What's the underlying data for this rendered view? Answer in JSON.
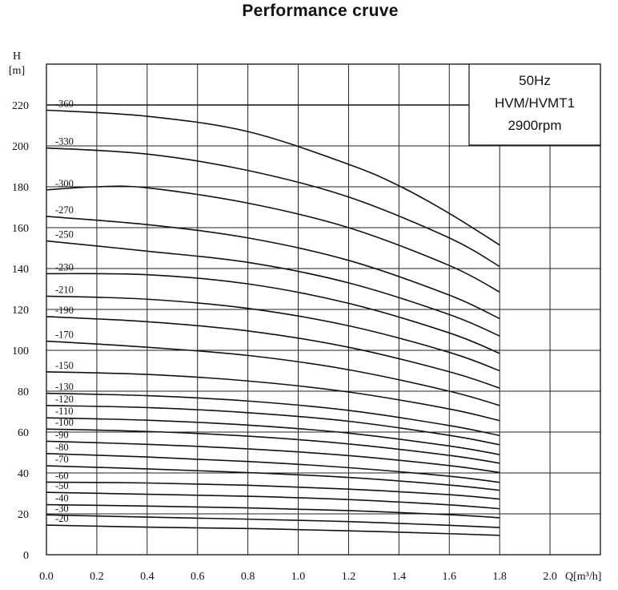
{
  "chart_data": {
    "type": "line",
    "title": "Performance cruve",
    "xlabel": "Q[m³/h]",
    "ylabel": "H",
    "ylabel_unit": "[m]",
    "xlim": [
      0,
      2.2
    ],
    "ylim": [
      0,
      240
    ],
    "x_ticks": [
      "0.0",
      "0.2",
      "0.4",
      "0.6",
      "0.8",
      "1.0",
      "1.2",
      "1.4",
      "1.6",
      "1.8",
      "2.0"
    ],
    "y_ticks": [
      "0",
      "20",
      "40",
      "60",
      "80",
      "100",
      "120",
      "140",
      "160",
      "180",
      "200",
      "220"
    ],
    "grid": true,
    "info_box": [
      "50Hz",
      "HVM/HVMT1",
      "2900rpm"
    ],
    "series": [
      {
        "name": "-20",
        "x": [
          0,
          0.4,
          0.8,
          1.2,
          1.6,
          1.8
        ],
        "y": [
          14.5,
          13.5,
          12.8,
          11.7,
          10.3,
          9.5
        ]
      },
      {
        "name": "-30",
        "x": [
          0,
          0.4,
          0.8,
          1.2,
          1.6,
          1.8
        ],
        "y": [
          19.5,
          18.4,
          17.4,
          16.2,
          14.4,
          13.3
        ]
      },
      {
        "name": "-40",
        "x": [
          0,
          0.4,
          0.8,
          1.2,
          1.6,
          1.8
        ],
        "y": [
          24.5,
          23.8,
          22.9,
          21.6,
          19.6,
          18.1
        ]
      },
      {
        "name": "-50",
        "x": [
          0,
          0.4,
          0.8,
          1.2,
          1.6,
          1.8
        ],
        "y": [
          30.5,
          29.6,
          28.6,
          27.0,
          24.4,
          22.5
        ]
      },
      {
        "name": "-60",
        "x": [
          0,
          0.4,
          0.8,
          1.2,
          1.6,
          1.8
        ],
        "y": [
          35.5,
          35.1,
          34.0,
          32.1,
          29.4,
          27.2
        ]
      },
      {
        "name": "-70",
        "x": [
          0,
          0.4,
          0.8,
          1.2,
          1.6,
          1.8
        ],
        "y": [
          43.5,
          42.0,
          40.2,
          37.8,
          34.1,
          31.5
        ]
      },
      {
        "name": "-80",
        "x": [
          0,
          0.4,
          0.8,
          1.2,
          1.6,
          1.8
        ],
        "y": [
          49.5,
          47.8,
          45.6,
          42.6,
          38.4,
          35.4
        ]
      },
      {
        "name": "-90",
        "x": [
          0,
          0.4,
          0.8,
          1.2,
          1.6,
          1.8
        ],
        "y": [
          55.5,
          54.0,
          51.8,
          48.5,
          43.6,
          40.2
        ]
      },
      {
        "name": "-100",
        "x": [
          0,
          0.4,
          0.8,
          1.2,
          1.6,
          1.8
        ],
        "y": [
          61.5,
          60.3,
          58.0,
          54.2,
          48.6,
          44.8
        ]
      },
      {
        "name": "-110",
        "x": [
          0,
          0.4,
          0.8,
          1.2,
          1.6,
          1.8
        ],
        "y": [
          67.0,
          65.8,
          63.4,
          59.5,
          53.2,
          49.0
        ]
      },
      {
        "name": "-120",
        "x": [
          0,
          0.4,
          0.8,
          1.2,
          1.6,
          1.8
        ],
        "y": [
          73.0,
          72.0,
          69.5,
          65.3,
          58.4,
          53.8
        ]
      },
      {
        "name": "-130",
        "x": [
          0,
          0.4,
          0.8,
          1.2,
          1.6,
          1.8
        ],
        "y": [
          79.0,
          77.8,
          75.2,
          70.6,
          63.2,
          58.3
        ]
      },
      {
        "name": "-150",
        "x": [
          0,
          0.4,
          0.8,
          1.2,
          1.6,
          1.8
        ],
        "y": [
          89.5,
          88.2,
          85.0,
          79.6,
          71.3,
          65.6
        ]
      },
      {
        "name": "-170",
        "x": [
          0,
          0.4,
          0.8,
          1.2,
          1.6,
          1.8
        ],
        "y": [
          104.5,
          101.5,
          97.5,
          90.5,
          80.0,
          73.0
        ]
      },
      {
        "name": "-190",
        "x": [
          0,
          0.4,
          0.8,
          1.2,
          1.6,
          1.8
        ],
        "y": [
          116.5,
          114.0,
          109.5,
          101.5,
          89.5,
          81.5
        ]
      },
      {
        "name": "-210",
        "x": [
          0,
          0.4,
          0.8,
          1.2,
          1.6,
          1.8
        ],
        "y": [
          126.5,
          125.0,
          120.5,
          112.0,
          99.0,
          90.0
        ]
      },
      {
        "name": "-230",
        "x": [
          0,
          0.4,
          0.8,
          1.2,
          1.6,
          1.8
        ],
        "y": [
          137.5,
          137.0,
          132.5,
          123.0,
          108.5,
          98.5
        ]
      },
      {
        "name": "-250",
        "x": [
          0,
          0.4,
          0.8,
          1.2,
          1.6,
          1.8
        ],
        "y": [
          153.5,
          148.5,
          143.0,
          133.0,
          117.5,
          107.0
        ]
      },
      {
        "name": "-270",
        "x": [
          0,
          0.4,
          0.8,
          1.2,
          1.6,
          1.8
        ],
        "y": [
          165.5,
          161.5,
          155.0,
          144.0,
          127.0,
          115.5
        ]
      },
      {
        "name": "-300",
        "x": [
          0,
          0.2,
          0.4,
          0.8,
          1.2,
          1.6,
          1.8
        ],
        "y": [
          178.5,
          180.0,
          179.5,
          172.0,
          160.0,
          141.5,
          128.5
        ]
      },
      {
        "name": "-330",
        "x": [
          0,
          0.4,
          0.8,
          1.2,
          1.6,
          1.8
        ],
        "y": [
          199.0,
          196.0,
          188.0,
          175.0,
          155.0,
          141.0
        ]
      },
      {
        "name": "-360",
        "x": [
          0,
          0.4,
          0.8,
          1.2,
          1.4,
          1.6,
          1.8
        ],
        "y": [
          217.5,
          214.5,
          207.0,
          191.0,
          180.5,
          167.0,
          151.5
        ]
      }
    ],
    "reference_line": {
      "y": 220,
      "x": [
        0,
        1.68
      ]
    }
  }
}
